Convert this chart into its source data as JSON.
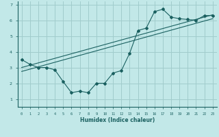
{
  "xlabel": "Humidex (Indice chaleur)",
  "bg_color": "#c2e8e8",
  "grid_color": "#a0cccc",
  "line_color": "#1a6060",
  "xlim": [
    -0.5,
    23.5
  ],
  "ylim": [
    0.5,
    7.2
  ],
  "xticks": [
    0,
    1,
    2,
    3,
    4,
    5,
    6,
    7,
    8,
    9,
    10,
    11,
    12,
    13,
    14,
    15,
    16,
    17,
    18,
    19,
    20,
    21,
    22,
    23
  ],
  "yticks": [
    1,
    2,
    3,
    4,
    5,
    6,
    7
  ],
  "curve1_x": [
    0,
    1,
    2,
    3,
    4,
    5,
    6,
    7,
    8,
    9,
    10,
    11,
    12,
    13,
    14,
    15,
    16,
    17,
    18,
    19,
    20,
    21,
    22,
    23
  ],
  "curve1_y": [
    3.5,
    3.2,
    3.0,
    3.0,
    2.85,
    2.1,
    1.4,
    1.5,
    1.4,
    2.0,
    2.0,
    2.65,
    2.8,
    3.9,
    5.35,
    5.5,
    6.55,
    6.7,
    6.2,
    6.1,
    6.05,
    6.0,
    6.3,
    6.3
  ],
  "curve2_x": [
    0,
    23
  ],
  "curve2_y": [
    3.0,
    6.35
  ],
  "curve3_x": [
    0,
    23
  ],
  "curve3_y": [
    2.75,
    6.1
  ]
}
